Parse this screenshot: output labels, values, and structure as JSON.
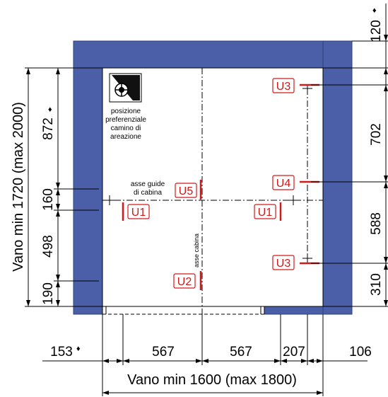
{
  "colors": {
    "wall": "#4a5fa8",
    "wall_edge": "#2d3f7a",
    "tag": "#d11a1a"
  },
  "icons": {
    "vent": "fan-icon"
  },
  "vent_note": {
    "line1": "posizione",
    "line2": "preferenziale",
    "line3": "camino di",
    "line4": "areazione"
  },
  "axis_labels": {
    "guide": "asse guide",
    "guide2": "di cabina",
    "cabin": "asse cabina"
  },
  "tags": {
    "u3_top": "U3",
    "u4": "U4",
    "u5": "U5",
    "u1_left": "U1",
    "u1_right": "U1",
    "u3_bottom": "U3",
    "u2": "U2"
  },
  "left_dims": {
    "vano": "Vano min 1720 (max 2000)",
    "d872": "872",
    "d160": "160",
    "d498": "498",
    "d190": "190",
    "star_872": "♦"
  },
  "right_dims": {
    "d120": "120",
    "star_120": "♦",
    "d702": "702",
    "d588": "588",
    "d310": "310"
  },
  "bottom_dims": {
    "d153": "153",
    "star_153": "♦",
    "d567a": "567",
    "d567b": "567",
    "d207": "207",
    "d106": "106",
    "vano": "Vano min 1600 (max 1800)"
  }
}
